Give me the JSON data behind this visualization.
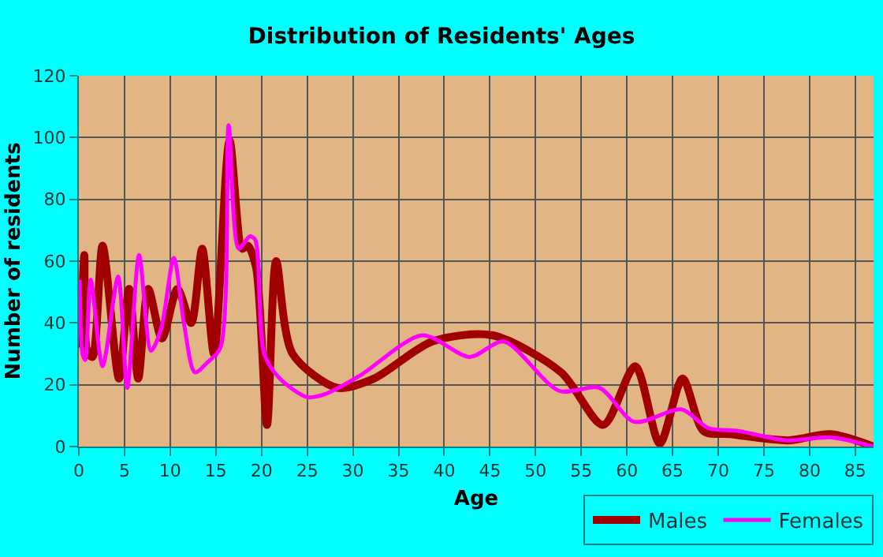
{
  "chart_data": {
    "type": "line",
    "title": "Distribution of Residents' Ages",
    "xlabel": "Age",
    "ylabel": "Number of residents",
    "xlim": [
      0,
      87
    ],
    "xticks": [
      0,
      5,
      10,
      15,
      20,
      25,
      30,
      35,
      40,
      45,
      50,
      55,
      60,
      65,
      70,
      75,
      80,
      85
    ],
    "ylim": [
      0,
      120
    ],
    "yticks": [
      0,
      20,
      40,
      60,
      80,
      100,
      120
    ],
    "grid": true,
    "legend": "bottom right",
    "marker": "none",
    "line_style": "solid",
    "series": [
      {
        "name": "Males",
        "color": "#a00000",
        "x": [
          0.2,
          0.6,
          0.9,
          1.5,
          2.6,
          4.4,
          5.5,
          6.5,
          7.6,
          9.1,
          10.8,
          12.3,
          13.5,
          14.8,
          16.5,
          17.9,
          18.5,
          19.4,
          20.6,
          21.6,
          23.4,
          28.3,
          32.3,
          38.7,
          45.3,
          52.8,
          57.4,
          60.9,
          63.6,
          66.1,
          68.4,
          71.3,
          77.7,
          82.3,
          87
        ],
        "values": [
          32,
          62,
          31,
          29,
          65,
          22,
          51,
          22,
          51,
          35,
          51,
          40,
          64,
          30,
          99,
          64,
          65,
          58,
          7,
          60,
          30,
          19,
          22,
          34,
          36,
          24,
          7,
          26,
          1,
          22,
          5,
          4,
          2,
          4,
          0
        ]
      },
      {
        "name": "Females",
        "color": "#ff00ff",
        "x": [
          0.1,
          0.4,
          0.7,
          1.3,
          2.6,
          4.3,
          5.3,
          6.6,
          7.9,
          9,
          10.4,
          11.5,
          12.7,
          14,
          15.5,
          16.4,
          17.5,
          18.7,
          19.3,
          20.3,
          22,
          25,
          27,
          30.8,
          37.6,
          42.8,
          46.5,
          52.6,
          57,
          60.8,
          66,
          68.9,
          72.3,
          77.5,
          82.2,
          87
        ],
        "values": [
          54,
          30,
          28,
          54,
          26,
          55,
          19,
          62,
          31,
          38,
          61,
          40,
          24,
          27,
          32,
          104,
          64,
          68,
          67,
          30,
          22,
          16,
          17,
          23,
          36,
          29,
          34,
          18,
          19,
          8,
          12,
          6,
          5,
          2,
          3,
          0
        ]
      }
    ]
  }
}
